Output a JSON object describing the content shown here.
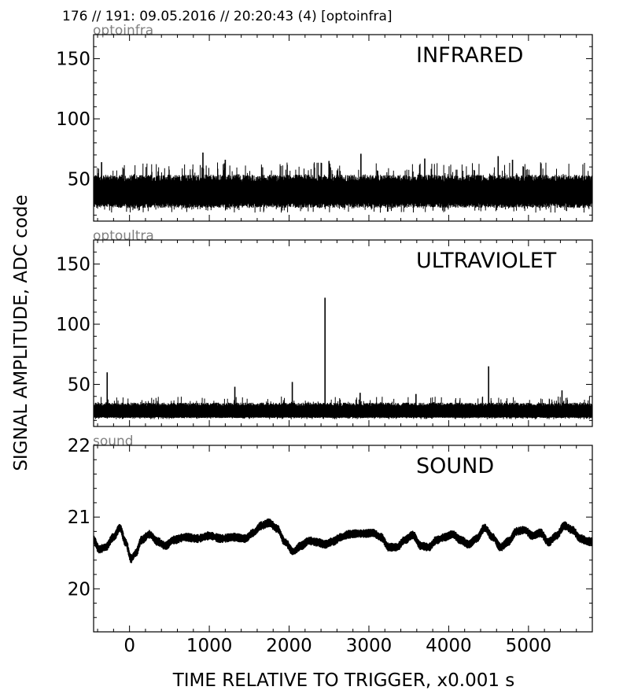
{
  "header": "176 // 191:   09.05.2016 // 20:20:43 (4)  [optoinfra]",
  "ylabel": "SIGNAL AMPLITUDE,  ADC code",
  "xlabel": "TIME RELATIVE TO TRIGGER,   x0.001 s",
  "chart_data": [
    {
      "type": "line",
      "channel": "optoinfra",
      "title": "INFRARED",
      "xlim": [
        -450,
        5800
      ],
      "ylim": [
        15,
        170
      ],
      "xticks": [
        0,
        1000,
        2000,
        3000,
        4000,
        5000
      ],
      "yticks": [
        50,
        100,
        150
      ],
      "ytick_labels": [
        "50",
        "100",
        "150"
      ],
      "show_xticklabels": false,
      "noise": {
        "baseline": 38,
        "low": 30,
        "high": 48,
        "max_low": 22,
        "max_high": 64
      },
      "spikes": [
        {
          "x": -350,
          "y": 64
        },
        {
          "x": 920,
          "y": 72
        },
        {
          "x": 1200,
          "y": 66
        },
        {
          "x": 2500,
          "y": 65
        },
        {
          "x": 2900,
          "y": 71
        },
        {
          "x": 3700,
          "y": 67
        },
        {
          "x": 4620,
          "y": 69
        },
        {
          "x": 4800,
          "y": 66
        }
      ]
    },
    {
      "type": "line",
      "channel": "optoultra",
      "title": "ULTRAVIOLET",
      "xlim": [
        -450,
        5800
      ],
      "ylim": [
        15,
        170
      ],
      "xticks": [
        0,
        1000,
        2000,
        3000,
        4000,
        5000
      ],
      "yticks": [
        50,
        100,
        150
      ],
      "ytick_labels": [
        "50",
        "100",
        "150"
      ],
      "show_xticklabels": false,
      "noise": {
        "baseline": 27,
        "low": 23,
        "high": 32,
        "max_low": 21,
        "max_high": 40
      },
      "spikes": [
        {
          "x": -280,
          "y": 60
        },
        {
          "x": 1320,
          "y": 48
        },
        {
          "x": 2040,
          "y": 52
        },
        {
          "x": 2450,
          "y": 122
        },
        {
          "x": 2890,
          "y": 43
        },
        {
          "x": 3590,
          "y": 42
        },
        {
          "x": 4500,
          "y": 65
        },
        {
          "x": 5420,
          "y": 45
        }
      ]
    },
    {
      "type": "line",
      "channel": "sound",
      "title": "SOUND",
      "xlim": [
        -450,
        5800
      ],
      "ylim": [
        19.4,
        22
      ],
      "xticks": [
        0,
        1000,
        2000,
        3000,
        4000,
        5000
      ],
      "xtick_labels": [
        "0",
        "1000",
        "2000",
        "3000",
        "4000",
        "5000"
      ],
      "yticks": [
        20,
        21,
        22
      ],
      "ytick_labels": [
        "20",
        "21",
        "22"
      ],
      "show_xticklabels": true,
      "x": [
        -450,
        -380,
        -300,
        -200,
        -120,
        -50,
        20,
        80,
        150,
        250,
        350,
        450,
        550,
        700,
        850,
        1000,
        1150,
        1300,
        1450,
        1550,
        1650,
        1750,
        1850,
        1950,
        2050,
        2150,
        2250,
        2350,
        2450,
        2550,
        2650,
        2750,
        2850,
        2950,
        3050,
        3150,
        3250,
        3350,
        3450,
        3550,
        3650,
        3750,
        3850,
        3950,
        4050,
        4150,
        4250,
        4350,
        4450,
        4550,
        4650,
        4750,
        4850,
        4950,
        5050,
        5150,
        5250,
        5350,
        5450,
        5550,
        5650,
        5750
      ],
      "y": [
        20.68,
        20.55,
        20.58,
        20.72,
        20.85,
        20.65,
        20.42,
        20.5,
        20.68,
        20.76,
        20.66,
        20.6,
        20.68,
        20.72,
        20.7,
        20.74,
        20.7,
        20.72,
        20.7,
        20.78,
        20.88,
        20.92,
        20.84,
        20.65,
        20.52,
        20.6,
        20.67,
        20.65,
        20.62,
        20.66,
        20.72,
        20.76,
        20.77,
        20.77,
        20.78,
        20.72,
        20.58,
        20.58,
        20.68,
        20.75,
        20.6,
        20.58,
        20.68,
        20.72,
        20.76,
        20.68,
        20.62,
        20.7,
        20.85,
        20.72,
        20.58,
        20.66,
        20.8,
        20.82,
        20.74,
        20.78,
        20.65,
        20.74,
        20.88,
        20.82,
        20.7,
        20.66
      ],
      "noise_amplitude": 0.045
    }
  ],
  "panel_labels": [
    "optoinfra",
    "optoultra",
    "sound"
  ]
}
